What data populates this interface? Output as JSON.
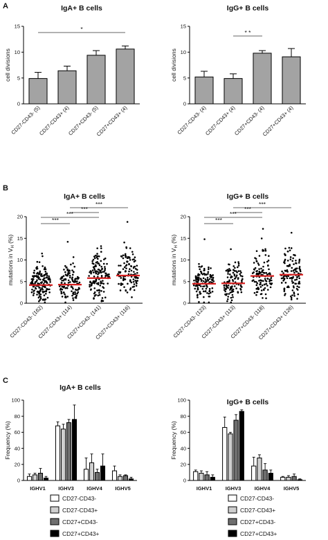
{
  "chart_data": [
    {
      "panel": "A",
      "title": "IgA+ B cells",
      "type": "bar",
      "ylabel": "cell divisions",
      "ylim": [
        0,
        15
      ],
      "yticks": [
        0,
        5,
        10,
        15
      ],
      "categories": [
        "CD27-CD43- (5)",
        "CD27-CD43+ (4)",
        "CD27+CD43- (5)",
        "CD27+CD43+ (4)"
      ],
      "values": [
        4.9,
        6.4,
        9.4,
        10.6
      ],
      "errors": [
        1.2,
        0.9,
        0.9,
        0.6
      ],
      "significance": [
        {
          "from": 0,
          "to": 3,
          "label": "*"
        }
      ]
    },
    {
      "panel": "",
      "title": "IgG+ B cells",
      "type": "bar",
      "ylabel": "cell divisions",
      "ylim": [
        0,
        15
      ],
      "yticks": [
        0,
        5,
        10,
        15
      ],
      "categories": [
        "CD27-CD43- (4)",
        "CD27-CD43+ (4)",
        "CD27+CD43- (4)",
        "CD27+CD43+ (4)"
      ],
      "values": [
        5.2,
        4.9,
        9.8,
        9.1
      ],
      "errors": [
        1.1,
        0.9,
        0.5,
        1.6
      ],
      "significance": [
        {
          "from": 1,
          "to": 2,
          "label": "* *"
        }
      ]
    },
    {
      "panel": "B",
      "title": "IgA+ B cells",
      "type": "scatter",
      "ylabel": "mutations in VH (%)",
      "ylim": [
        0,
        20
      ],
      "yticks": [
        0,
        5,
        10,
        15,
        20
      ],
      "categories": [
        "CD27-CD43- (162)",
        "CD27-CD43+ (114)",
        "CD27+CD43- (141)",
        "CD27+CD43+ (116)"
      ],
      "counts": [
        162,
        114,
        141,
        116
      ],
      "means": [
        4.2,
        4.3,
        5.8,
        6.4
      ],
      "maxima": [
        11.5,
        14.2,
        13.2,
        18.8
      ],
      "significance": [
        {
          "from": 1,
          "to": 3,
          "label": "***"
        },
        {
          "from": 1,
          "to": 2,
          "label": "***"
        },
        {
          "from": 0,
          "to": 2,
          "label": "***"
        },
        {
          "from": 0,
          "to": 1,
          "label": "***"
        }
      ]
    },
    {
      "panel": "",
      "title": "IgG+ B cells",
      "type": "scatter",
      "ylabel": "mutations in VH (%)",
      "ylim": [
        0,
        20
      ],
      "yticks": [
        0,
        5,
        10,
        15,
        20
      ],
      "categories": [
        "CD27-CD43- (123)",
        "CD27-CD43+ (113)",
        "CD27+CD43- (118)",
        "CD27+CD43+ (126)"
      ],
      "counts": [
        123,
        113,
        118,
        126
      ],
      "means": [
        4.5,
        4.6,
        6.3,
        6.6
      ],
      "maxima": [
        14.8,
        12.5,
        17.2,
        16.3
      ],
      "significance": [
        {
          "from": 1,
          "to": 3,
          "label": "***"
        },
        {
          "from": 1,
          "to": 2,
          "label": "***"
        },
        {
          "from": 0,
          "to": 2,
          "label": "***"
        },
        {
          "from": 0,
          "to": 1,
          "label": "***"
        }
      ]
    },
    {
      "panel": "C",
      "title": "IgA+ B cells",
      "type": "bar",
      "ylabel": "Frequency (%)",
      "ylim": [
        0,
        100
      ],
      "yticks": [
        0,
        20,
        40,
        60,
        80,
        100
      ],
      "categories": [
        "IGHV1",
        "IGHV3",
        "IGHV4",
        "IGHV5"
      ],
      "series": [
        {
          "name": "CD27-CD43-",
          "values": [
            5,
            68,
            14,
            12
          ],
          "errors": [
            3,
            5,
            14,
            6
          ]
        },
        {
          "name": "CD27-CD43+",
          "values": [
            7,
            64,
            22,
            5
          ],
          "errors": [
            2,
            6,
            11,
            2
          ]
        },
        {
          "name": "CD27+CD43-",
          "values": [
            9,
            72,
            10,
            6
          ],
          "errors": [
            6,
            4,
            4,
            1
          ]
        },
        {
          "name": "CD27+CD43+",
          "values": [
            3,
            76,
            18,
            2
          ],
          "errors": [
            2,
            18,
            15,
            2
          ]
        }
      ],
      "legend_position": "bottom"
    },
    {
      "panel": "",
      "title": "IgG+ B cells",
      "type": "bar",
      "ylabel": "Frequency (%)",
      "ylim": [
        0,
        100
      ],
      "yticks": [
        0,
        20,
        40,
        60,
        80,
        100
      ],
      "categories": [
        "IGHV1",
        "IGHV3",
        "IGHV4",
        "IGHV5"
      ],
      "series": [
        {
          "name": "CD27-CD43-",
          "values": [
            11,
            66,
            18,
            4
          ],
          "errors": [
            2,
            13,
            11,
            1
          ]
        },
        {
          "name": "CD27-CD43+",
          "values": [
            9,
            58,
            28,
            4
          ],
          "errors": [
            3,
            2,
            4,
            2
          ]
        },
        {
          "name": "CD27+CD43-",
          "values": [
            7,
            75,
            13,
            5
          ],
          "errors": [
            4,
            7,
            8,
            3
          ]
        },
        {
          "name": "CD27+CD43+",
          "values": [
            4,
            86,
            9,
            1
          ],
          "errors": [
            3,
            2,
            4,
            1
          ]
        }
      ],
      "legend_position": "bottom"
    }
  ],
  "colors": {
    "bar_gray": "#a3a3a3",
    "mean_line": "#d62020",
    "open_bar": "#ffffff",
    "light_gray": "#cfcfcf",
    "dark_gray": "#6e6e6e",
    "black": "#000000"
  }
}
